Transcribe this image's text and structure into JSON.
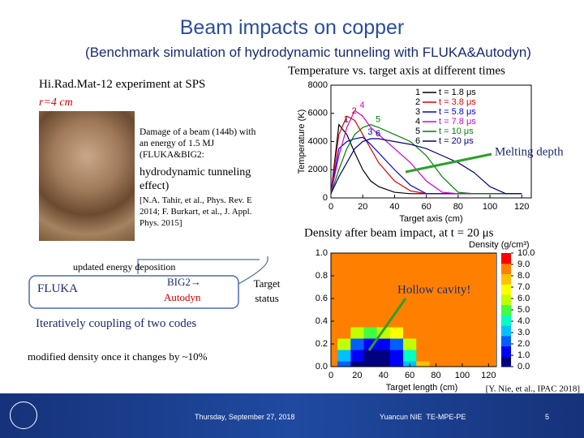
{
  "title": "Beam impacts on copper",
  "subtitle": "(Benchmark simulation of hydrodynamic tunneling with FLUKA&Autodyn)",
  "experiment": {
    "title": "Hi.Rad.Mat-12 experiment at SPS",
    "radius": "r=4 cm",
    "damage": "Damage of a beam (144b) with an energy of 1.5 MJ (FLUKA&BIG2:",
    "effect": "hydrodynamic tunneling effect)",
    "reference": "[N.A. Tahir, et al., Phys. Rev. E 2014; F. Burkart, et al., J. Appl. Phys. 2015]"
  },
  "diagram": {
    "deposition": "updated energy deposition",
    "fluka": "FLUKA",
    "big2": "BIG2→",
    "autodyn": "Autodyn",
    "target_status": "Target status",
    "coupling": "Iteratively coupling of two codes",
    "density_note": "modified density once it changes by ~10%"
  },
  "annotations": {
    "melting": "Melting depth",
    "cavity": "Hollow cavity!"
  },
  "footer": {
    "date": "Thursday, September 27, 2018",
    "author": "Yuancun NIE  TE-MPE-PE",
    "page": "5",
    "citation": "[Y. Nie, et al., IPAC 2018]"
  },
  "chart_data": [
    {
      "type": "line",
      "title": "Temperature vs. target axis at different times",
      "x_label": "Target axis (cm)",
      "y_label": "Temperature (K)",
      "x": [
        0,
        5,
        10,
        15,
        20,
        25,
        30,
        40,
        50,
        60,
        70,
        80,
        90,
        100,
        110,
        120
      ],
      "xlim": [
        0,
        126
      ],
      "xticks": [
        0,
        20,
        40,
        60,
        80,
        100,
        120
      ],
      "ylim": [
        0,
        8000
      ],
      "yticks": [
        0,
        2000,
        4000,
        6000,
        8000
      ],
      "series": [
        {
          "label": "1",
          "name": "t = 1.8 μs",
          "color": "#000000",
          "values": [
            300,
            5200,
            4500,
            3200,
            2000,
            1200,
            800,
            400,
            300,
            300,
            300,
            300,
            300,
            300,
            300,
            300
          ]
        },
        {
          "label": "2",
          "name": "t = 3.8 μs",
          "color": "#e00000",
          "values": [
            300,
            4500,
            5800,
            5500,
            4500,
            3500,
            2500,
            1200,
            500,
            300,
            300,
            300,
            300,
            300,
            300,
            300
          ]
        },
        {
          "label": "3",
          "name": "t = 5.8 μs",
          "color": "#0000e0",
          "values": [
            300,
            3500,
            4000,
            4200,
            4300,
            3800,
            3200,
            2000,
            900,
            300,
            300,
            300,
            300,
            300,
            300,
            300
          ]
        },
        {
          "label": "4",
          "name": "t = 7.8 μs",
          "color": "#d000d0",
          "values": [
            300,
            3000,
            5000,
            6200,
            5800,
            5000,
            4500,
            3500,
            2500,
            1200,
            400,
            300,
            300,
            300,
            300,
            300
          ]
        },
        {
          "label": "5",
          "name": "t = 10 μs",
          "color": "#008000",
          "values": [
            300,
            2000,
            3500,
            4500,
            5000,
            5200,
            5000,
            4500,
            4000,
            3000,
            1500,
            400,
            300,
            300,
            300,
            300
          ]
        },
        {
          "label": "6",
          "name": "t = 20 μs",
          "color": "#000080",
          "values": [
            300,
            1500,
            2500,
            3500,
            4000,
            4200,
            4200,
            4000,
            3800,
            3500,
            3000,
            2500,
            1800,
            800,
            300,
            300
          ]
        }
      ]
    },
    {
      "type": "contour",
      "title": "Density after beam impact, at t = 20 μs",
      "x_label": "Target length (cm)",
      "colorbar_label": "Density (g/cm³)",
      "x": [
        0,
        10,
        20,
        30,
        40,
        50,
        60,
        70,
        80,
        90,
        100,
        110,
        120
      ],
      "y": [
        0,
        0.1,
        0.2,
        0.3,
        0.4,
        0.5,
        0.6,
        0.7,
        0.8,
        0.9,
        1.0
      ],
      "values": [
        [
          8.9,
          2.0,
          0.3,
          0.2,
          0.2,
          0.5,
          3.0,
          8.0,
          8.9,
          8.9,
          8.9,
          8.9,
          8.9
        ],
        [
          8.9,
          3.0,
          0.5,
          0.3,
          0.3,
          0.8,
          4.0,
          8.5,
          8.9,
          8.9,
          8.9,
          8.9,
          8.9
        ],
        [
          8.9,
          6.0,
          1.5,
          0.8,
          1.0,
          2.0,
          6.0,
          8.9,
          8.9,
          8.9,
          8.9,
          8.9,
          8.9
        ],
        [
          8.9,
          8.5,
          6.0,
          5.0,
          6.0,
          7.0,
          8.5,
          8.9,
          8.9,
          8.9,
          8.9,
          8.9,
          8.9
        ],
        [
          8.9,
          8.9,
          8.5,
          8.5,
          8.5,
          8.9,
          8.9,
          8.9,
          8.9,
          8.9,
          8.9,
          8.9,
          8.9
        ],
        [
          8.9,
          8.9,
          8.9,
          8.9,
          8.9,
          8.9,
          8.9,
          8.9,
          8.9,
          8.9,
          8.9,
          8.9,
          8.9
        ],
        [
          8.9,
          8.9,
          8.9,
          8.9,
          8.9,
          8.9,
          8.9,
          8.9,
          8.9,
          8.9,
          8.9,
          8.9,
          8.9
        ],
        [
          8.9,
          8.9,
          8.9,
          8.9,
          8.9,
          8.9,
          8.9,
          8.9,
          8.9,
          8.9,
          8.9,
          8.9,
          8.9
        ],
        [
          8.9,
          8.9,
          8.9,
          8.9,
          8.9,
          8.9,
          8.9,
          8.9,
          8.9,
          8.9,
          8.9,
          8.9,
          8.9
        ],
        [
          8.9,
          8.9,
          8.9,
          8.9,
          8.9,
          8.9,
          8.9,
          8.9,
          8.9,
          8.9,
          8.9,
          8.9,
          8.9
        ],
        [
          8.9,
          8.9,
          8.9,
          8.9,
          8.9,
          8.9,
          8.9,
          8.9,
          8.9,
          8.9,
          8.9,
          8.9,
          8.9
        ]
      ],
      "xlim": [
        0,
        126
      ],
      "xticks": [
        0,
        20,
        40,
        60,
        80,
        100,
        120
      ],
      "ylim": [
        0,
        1
      ],
      "yticks": [
        {
          "value": 0,
          "label": "0.0"
        },
        {
          "value": 0.2,
          "label": "0.2"
        },
        {
          "value": 0.4,
          "label": "0.4"
        },
        {
          "value": 0.6,
          "label": "0.6"
        },
        {
          "value": 0.8,
          "label": "0.8"
        },
        {
          "value": 1,
          "label": "1.0"
        }
      ],
      "clim": [
        0,
        10
      ],
      "cticks": [
        {
          "value": 0,
          "label": "0.0"
        },
        {
          "value": 1,
          "label": "1.0"
        },
        {
          "value": 2,
          "label": "2.0"
        },
        {
          "value": 3,
          "label": "3.0"
        },
        {
          "value": 4,
          "label": "4.0"
        },
        {
          "value": 5,
          "label": "5.0"
        },
        {
          "value": 6,
          "label": "6.0"
        },
        {
          "value": 7,
          "label": "7.0"
        },
        {
          "value": 8,
          "label": "8.0"
        },
        {
          "value": 9,
          "label": "9.0"
        },
        {
          "value": 10,
          "label": "10.0"
        }
      ],
      "colorscale": [
        "#000080",
        "#0000ff",
        "#0060ff",
        "#00c0ff",
        "#00ffc0",
        "#40ff40",
        "#c0ff00",
        "#ffff00",
        "#ffc000",
        "#ff8000",
        "#ff0000"
      ]
    }
  ]
}
